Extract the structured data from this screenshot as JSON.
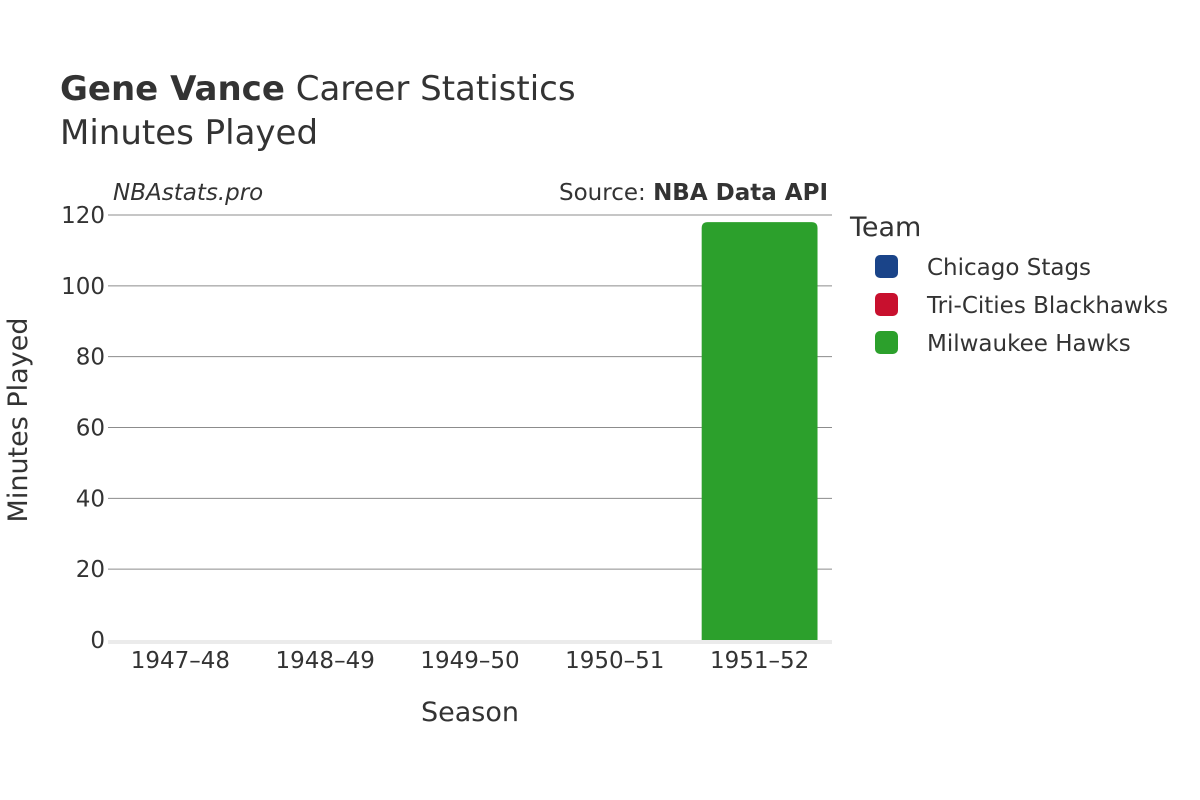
{
  "chart_data": {
    "type": "bar",
    "title_bold": "Gene Vance",
    "title_rest": "Career Statistics",
    "subtitle": "Minutes Played",
    "watermark": "NBAstats.pro",
    "source_prefix": "Source: ",
    "source_name": "NBA Data API",
    "xlabel": "Season",
    "ylabel": "Minutes Played",
    "categories": [
      "1947–48",
      "1948–49",
      "1949–50",
      "1950–51",
      "1951–52"
    ],
    "ylim": [
      0,
      120
    ],
    "yticks": [
      0,
      20,
      40,
      60,
      80,
      100,
      120
    ],
    "grid": true,
    "legend_title": "Team",
    "legend_position": "right",
    "series": [
      {
        "name": "Chicago Stags",
        "color": "#1a4489",
        "values": [
          0,
          0,
          0,
          0,
          0
        ]
      },
      {
        "name": "Tri-Cities Blackhawks",
        "color": "#c8102e",
        "values": [
          0,
          0,
          0,
          0,
          0
        ]
      },
      {
        "name": "Milwaukee Hawks",
        "color": "#2ca02c",
        "values": [
          0,
          0,
          0,
          0,
          118
        ]
      }
    ]
  }
}
